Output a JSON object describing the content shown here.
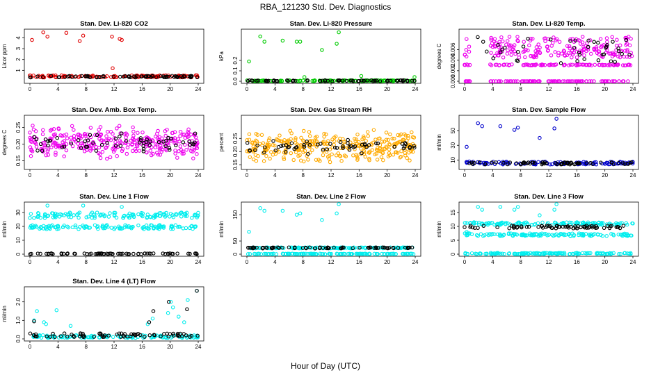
{
  "title": "RBA_121230  Std. Dev. Diagnostics",
  "xlabel": "Hour of Day (UTC)",
  "chart_data": [
    {
      "type": "scatter",
      "title": "Stan. Dev. Li-820 CO2",
      "ylabel": "Licor ppm",
      "color": "#e00000",
      "xlim": [
        0,
        24
      ],
      "ylim": [
        0,
        4.6
      ],
      "xticks": [
        "0",
        "4",
        "8",
        "12",
        "16",
        "20",
        "24"
      ],
      "yticks": [
        "1",
        "2",
        "3",
        "4"
      ],
      "baseline": [
        0.35,
        0.55
      ],
      "black_baseline": [
        0.35,
        0.5
      ],
      "outliers": [
        [
          0.3,
          3.8
        ],
        [
          1.9,
          4.5
        ],
        [
          2.5,
          4.1
        ],
        [
          5.2,
          4.45
        ],
        [
          7.1,
          3.7
        ],
        [
          7.6,
          4.2
        ],
        [
          11.7,
          4.1
        ],
        [
          12.8,
          3.9
        ],
        [
          13.1,
          3.8
        ],
        [
          11.8,
          1.2
        ]
      ]
    },
    {
      "type": "scatter",
      "title": "Stan. Dev. Li-820 Pressure",
      "ylabel": "kPa",
      "color": "#00cc00",
      "xlim": [
        0,
        24
      ],
      "ylim": [
        0,
        0.48
      ],
      "xticks": [
        "0",
        "4",
        "8",
        "12",
        "16",
        "20",
        "24"
      ],
      "yticks": [
        "0.0",
        "0.1",
        "0.2"
      ],
      "baseline": [
        0.0,
        0.01
      ],
      "black_baseline": [
        0.0,
        0.01
      ],
      "outliers": [
        [
          0.3,
          0.19
        ],
        [
          1.9,
          0.43
        ],
        [
          2.5,
          0.38
        ],
        [
          5.1,
          0.39
        ],
        [
          7.1,
          0.38
        ],
        [
          7.6,
          0.38
        ],
        [
          8.2,
          0.04
        ],
        [
          10.7,
          0.3
        ],
        [
          12.8,
          0.36
        ],
        [
          13.1,
          0.47
        ],
        [
          16.3,
          0.05
        ],
        [
          23.9,
          0.04
        ]
      ]
    },
    {
      "type": "scatter",
      "title": "Stan. Dev. Li-820 Temp.",
      "ylabel": "degrees C",
      "color": "#ee00ee",
      "xlim": [
        0,
        24
      ],
      "ylim": [
        0,
        0.0095
      ],
      "xticks": [
        "0",
        "4",
        "8",
        "12",
        "16",
        "20",
        "24"
      ],
      "yticks": [
        "0.000",
        "0.002",
        "0.004",
        "0.006"
      ],
      "bands": [
        [
          0.0,
          0.0
        ],
        [
          0.003,
          0.0032
        ],
        [
          0.0045,
          0.006
        ],
        [
          0.006,
          0.0085
        ]
      ],
      "black_range": [
        0.003,
        0.0085
      ],
      "gaps": [
        [
          0.8,
          3.5
        ]
      ]
    },
    {
      "type": "scatter",
      "title": "Stan. Dev. Amb. Box Temp.",
      "ylabel": "degrees C",
      "color": "#ee00ee",
      "xlim": [
        0,
        24
      ],
      "ylim": [
        0.13,
        0.28
      ],
      "xticks": [
        "0",
        "4",
        "8",
        "12",
        "16",
        "20",
        "24"
      ],
      "yticks": [
        "0.15",
        "0.20",
        "0.25"
      ],
      "center": 0.205,
      "spread": 0.045,
      "black_spread": 0.03
    },
    {
      "type": "scatter",
      "title": "Stan. Dev. Gas Stream RH",
      "ylabel": "percent",
      "color": "#ffaa00",
      "xlim": [
        0,
        24
      ],
      "ylim": [
        0.14,
        0.33
      ],
      "xticks": [
        "0",
        "4",
        "8",
        "12",
        "16",
        "20",
        "24"
      ],
      "yticks": [
        "0.15",
        "0.20",
        "0.25"
      ],
      "center": 0.22,
      "spread": 0.055,
      "black_spread": 0.03
    },
    {
      "type": "scatter",
      "title": "Stan. Dev. Sample Flow",
      "ylabel": "ml/min",
      "color": "#0000cc",
      "xlim": [
        0,
        24
      ],
      "ylim": [
        0,
        68
      ],
      "xticks": [
        "0",
        "4",
        "8",
        "12",
        "16",
        "20",
        "24"
      ],
      "yticks": [
        "10",
        "30",
        "50"
      ],
      "baseline": [
        4,
        8
      ],
      "black_baseline": [
        4,
        7
      ],
      "outliers": [
        [
          0.3,
          28
        ],
        [
          1.9,
          60
        ],
        [
          2.5,
          56
        ],
        [
          5.1,
          56
        ],
        [
          7.1,
          51
        ],
        [
          7.6,
          54
        ],
        [
          10.7,
          40
        ],
        [
          12.8,
          53
        ],
        [
          13.1,
          66
        ]
      ]
    },
    {
      "type": "scatter",
      "title": "Stan. Dev. Line 1 Flow",
      "ylabel": "ml/min",
      "color": "#00eeee",
      "xlim": [
        0,
        24
      ],
      "ylim": [
        0,
        36
      ],
      "xticks": [
        "0",
        "4",
        "8",
        "12",
        "16",
        "20",
        "24"
      ],
      "yticks": [
        "0",
        "10",
        "20",
        "30"
      ],
      "bands_y": [
        [
          26,
          30
        ],
        [
          18,
          21
        ]
      ],
      "black_y": [
        0,
        0.6
      ],
      "outliers": [
        [
          0.3,
          19
        ],
        [
          2.5,
          35
        ],
        [
          7.6,
          35
        ],
        [
          13.1,
          34
        ]
      ]
    },
    {
      "type": "scatter",
      "title": "Stan. Dev. Line 2 Flow",
      "ylabel": "ml/min",
      "color": "#00eeee",
      "xlim": [
        0,
        24
      ],
      "ylim": [
        0,
        190
      ],
      "xticks": [
        "0",
        "4",
        "8",
        "12",
        "16",
        "20",
        "24"
      ],
      "yticks": [
        "0",
        "50",
        "150"
      ],
      "bands_y": [
        [
          22,
          26
        ],
        [
          0,
          2
        ]
      ],
      "black_y": [
        22,
        26
      ],
      "outliers": [
        [
          0.3,
          85
        ],
        [
          1.9,
          175
        ],
        [
          2.5,
          165
        ],
        [
          5.1,
          165
        ],
        [
          7.1,
          150
        ],
        [
          7.6,
          155
        ],
        [
          10.7,
          130
        ],
        [
          12.8,
          155
        ],
        [
          13.1,
          190
        ]
      ]
    },
    {
      "type": "scatter",
      "title": "Stan. Dev. Line 3 Flow",
      "ylabel": "ml/min",
      "color": "#00eeee",
      "xlim": [
        0,
        24
      ],
      "ylim": [
        0,
        18
      ],
      "xticks": [
        "0",
        "4",
        "8",
        "12",
        "16",
        "20",
        "24"
      ],
      "yticks": [
        "0",
        "5",
        "10",
        "15"
      ],
      "bands_y": [
        [
          10.5,
          11.5
        ],
        [
          6.5,
          7.5
        ],
        [
          0,
          0.5
        ]
      ],
      "black_y": [
        9.3,
        10.3
      ],
      "outliers": [
        [
          0.3,
          8
        ],
        [
          1.9,
          17
        ],
        [
          2.5,
          16
        ],
        [
          5.1,
          17
        ],
        [
          7.1,
          16
        ],
        [
          7.6,
          17
        ],
        [
          10.7,
          14
        ],
        [
          12.8,
          16
        ],
        [
          13.1,
          18
        ]
      ]
    },
    {
      "type": "scatter",
      "title": "Stan. Dev. Line 4 (LT) Flow",
      "ylabel": "ml/min",
      "color": "#00eeee",
      "xlim": [
        0,
        24
      ],
      "ylim": [
        0,
        2.7
      ],
      "xticks": [
        "0",
        "4",
        "8",
        "12",
        "16",
        "20",
        "24"
      ],
      "yticks": [
        "0.0",
        "1.0",
        "2.0"
      ],
      "baseline": [
        0.05,
        0.2
      ],
      "black_baseline": [
        0.1,
        0.3
      ],
      "outliers": [
        [
          0.6,
          1.0
        ],
        [
          1.0,
          1.5
        ],
        [
          2.0,
          0.9
        ],
        [
          2.3,
          0.8
        ],
        [
          3.8,
          1.55
        ],
        [
          5.8,
          0.7
        ],
        [
          16.8,
          0.8
        ],
        [
          17.5,
          1.1
        ],
        [
          19.7,
          1.4
        ],
        [
          20.1,
          2.0
        ],
        [
          20.4,
          1.7
        ],
        [
          21.2,
          1.2
        ],
        [
          22.0,
          0.9
        ],
        [
          22.5,
          2.1
        ],
        [
          23.8,
          2.6
        ]
      ],
      "black_outliers": [
        [
          0.6,
          0.95
        ],
        [
          17.0,
          0.9
        ],
        [
          17.6,
          1.5
        ],
        [
          19.8,
          2.0
        ],
        [
          22.4,
          1.6
        ],
        [
          23.8,
          2.6
        ]
      ]
    }
  ]
}
